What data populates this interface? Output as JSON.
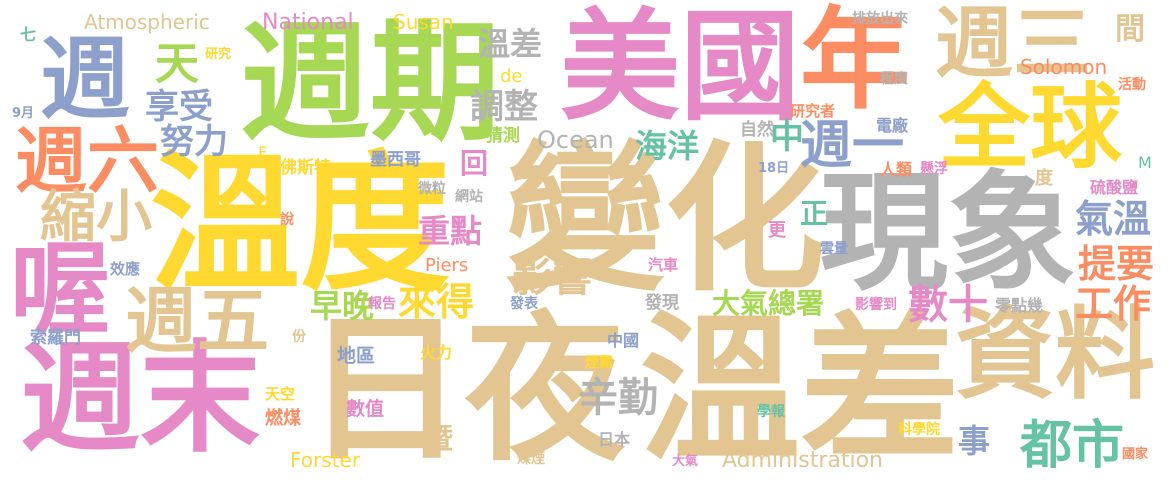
{
  "palette": {
    "tan": "#e2c591",
    "pink": "#e68ac7",
    "green": "#a6d854",
    "yellow": "#ffd92f",
    "orange": "#fc8d62",
    "blue": "#8da0cb",
    "gray": "#b3b3b3",
    "teal": "#66c2a5"
  },
  "words": [
    {
      "text": "變化",
      "color": "tan"
    },
    {
      "text": "日夜",
      "color": "tan"
    },
    {
      "text": "溫差",
      "color": "tan"
    },
    {
      "text": "溫度",
      "color": "yellow"
    },
    {
      "text": "週期",
      "color": "green"
    },
    {
      "text": "美國",
      "color": "pink"
    },
    {
      "text": "現象",
      "color": "gray"
    },
    {
      "text": "週末",
      "color": "pink"
    },
    {
      "text": "資料",
      "color": "tan"
    },
    {
      "text": "年",
      "color": "orange"
    },
    {
      "text": "全球",
      "color": "yellow"
    },
    {
      "text": "週",
      "color": "blue"
    },
    {
      "text": "喔",
      "color": "pink"
    },
    {
      "text": "週三",
      "color": "tan"
    },
    {
      "text": "週六",
      "color": "orange"
    },
    {
      "text": "週五",
      "color": "tan"
    },
    {
      "text": "縮小",
      "color": "tan"
    },
    {
      "text": "都市",
      "color": "teal"
    },
    {
      "text": "週一",
      "color": "blue"
    },
    {
      "text": "天",
      "color": "green"
    },
    {
      "text": "享受",
      "color": "blue"
    },
    {
      "text": "努力",
      "color": "blue"
    },
    {
      "text": "調整",
      "color": "gray"
    },
    {
      "text": "溫差",
      "color": "gray"
    },
    {
      "text": "氣溫",
      "color": "blue"
    },
    {
      "text": "提要",
      "color": "orange"
    },
    {
      "text": "工作",
      "color": "orange"
    },
    {
      "text": "影響",
      "color": "tan"
    },
    {
      "text": "辛勤",
      "color": "gray"
    },
    {
      "text": "來得",
      "color": "yellow"
    },
    {
      "text": "早晚",
      "color": "green"
    },
    {
      "text": "數十",
      "color": "pink"
    },
    {
      "text": "海洋",
      "color": "teal"
    },
    {
      "text": "重點",
      "color": "pink"
    },
    {
      "text": "大氣總署",
      "color": "green"
    },
    {
      "text": "Ocean",
      "color": "gray"
    },
    {
      "text": "National",
      "color": "pink"
    },
    {
      "text": "Atmospheric",
      "color": "tan"
    },
    {
      "text": "Susan",
      "color": "yellow"
    },
    {
      "text": "Solomon",
      "color": "orange"
    },
    {
      "text": "Administration",
      "color": "tan"
    },
    {
      "text": "Forster",
      "color": "yellow"
    },
    {
      "text": "Piers",
      "color": "orange"
    },
    {
      "text": "de",
      "color": "yellow"
    },
    {
      "text": "中",
      "color": "teal"
    },
    {
      "text": "間",
      "color": "tan"
    },
    {
      "text": "事",
      "color": "blue"
    },
    {
      "text": "暨",
      "color": "tan"
    },
    {
      "text": "回",
      "color": "pink"
    },
    {
      "text": "正",
      "color": "teal"
    },
    {
      "text": "度",
      "color": "tan"
    },
    {
      "text": "更",
      "color": "pink"
    },
    {
      "text": "說",
      "color": "orange"
    },
    {
      "text": "份",
      "color": "tan"
    },
    {
      "text": "七",
      "color": "teal"
    },
    {
      "text": "M",
      "color": "teal"
    },
    {
      "text": "F",
      "color": "yellow"
    },
    {
      "text": "9月",
      "color": "blue"
    },
    {
      "text": "18日",
      "color": "blue"
    },
    {
      "text": "研究",
      "color": "yellow"
    },
    {
      "text": "佛斯特",
      "color": "yellow"
    },
    {
      "text": "墨西哥",
      "color": "blue"
    },
    {
      "text": "猜測",
      "color": "green"
    },
    {
      "text": "自然",
      "color": "gray"
    },
    {
      "text": "研究者",
      "color": "orange"
    },
    {
      "text": "電廠",
      "color": "blue"
    },
    {
      "text": "程度",
      "color": "gray"
    },
    {
      "text": "排放出來",
      "color": "gray"
    },
    {
      "text": "活動",
      "color": "orange"
    },
    {
      "text": "人類",
      "color": "orange"
    },
    {
      "text": "懸浮",
      "color": "pink"
    },
    {
      "text": "硫酸鹽",
      "color": "pink"
    },
    {
      "text": "微粒",
      "color": "gray"
    },
    {
      "text": "網站",
      "color": "gray"
    },
    {
      "text": "效應",
      "color": "blue"
    },
    {
      "text": "雲量",
      "color": "blue"
    },
    {
      "text": "汽車",
      "color": "pink"
    },
    {
      "text": "報告",
      "color": "pink"
    },
    {
      "text": "發表",
      "color": "blue"
    },
    {
      "text": "發現",
      "color": "gray"
    },
    {
      "text": "零點幾",
      "color": "gray"
    },
    {
      "text": "影響到",
      "color": "pink"
    },
    {
      "text": "索羅門",
      "color": "blue"
    },
    {
      "text": "地區",
      "color": "blue"
    },
    {
      "text": "火力",
      "color": "yellow"
    },
    {
      "text": "中國",
      "color": "blue"
    },
    {
      "text": "煙霧",
      "color": "yellow"
    },
    {
      "text": "天空",
      "color": "yellow"
    },
    {
      "text": "燃煤",
      "color": "orange"
    },
    {
      "text": "數值",
      "color": "pink"
    },
    {
      "text": "學報",
      "color": "teal"
    },
    {
      "text": "科學院",
      "color": "yellow"
    },
    {
      "text": "日本",
      "color": "gray"
    },
    {
      "text": "煤煙",
      "color": "tan"
    },
    {
      "text": "大氣",
      "color": "pink"
    },
    {
      "text": "國家",
      "color": "orange"
    }
  ]
}
